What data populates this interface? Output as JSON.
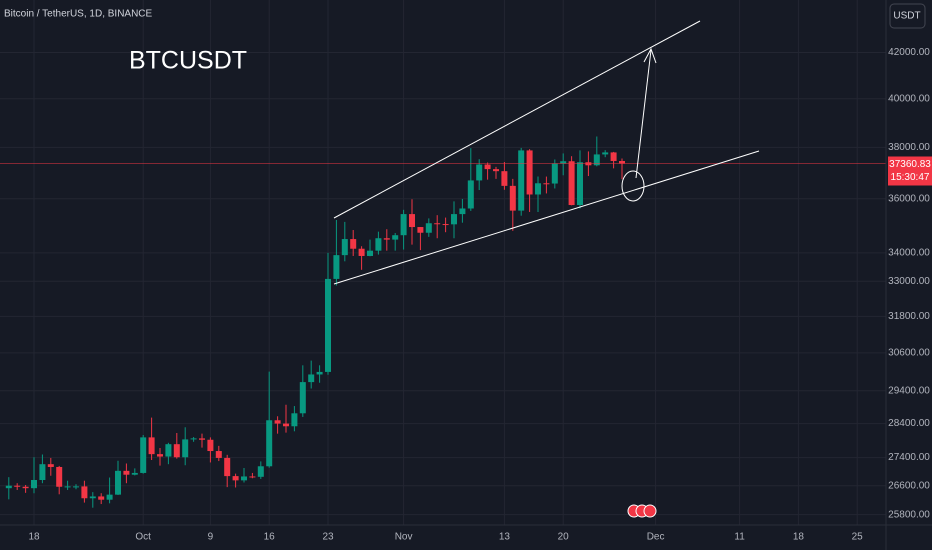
{
  "chart_data": {
    "type": "candlestick",
    "symbol_line": "Bitcoin / TetherUS, 1D, BINANCE",
    "title": "BTCUSDT",
    "currency_button": "USDT",
    "last_price": 37360.83,
    "countdown": "15:30:47",
    "log_scale": true,
    "grid": true,
    "up_color": "#089981",
    "down_color": "#f23645",
    "categories": [
      null,
      null,
      null,
      "18",
      null,
      null,
      null,
      null,
      null,
      null,
      null,
      null,
      null,
      null,
      null,
      null,
      "Oct",
      null,
      null,
      null,
      null,
      null,
      null,
      null,
      "9",
      null,
      null,
      null,
      null,
      null,
      null,
      "16",
      null,
      null,
      null,
      null,
      null,
      null,
      "23",
      null,
      null,
      null,
      null,
      null,
      null,
      null,
      null,
      "Nov",
      null,
      null,
      null,
      null,
      null,
      null,
      null,
      null,
      null,
      null,
      null,
      "13",
      null,
      null,
      null,
      null,
      null,
      null,
      "20",
      null,
      null,
      null,
      null,
      null,
      null,
      null,
      null,
      null,
      null,
      "Dec",
      null,
      null,
      null,
      null,
      null,
      null,
      null,
      null,
      null,
      "11",
      null,
      null,
      null,
      null,
      null,
      null,
      "18",
      null,
      null,
      null,
      null,
      null,
      null,
      "25",
      null,
      null
    ],
    "open": [
      26530,
      26600,
      26570,
      26530,
      26760,
      27210,
      27130,
      26570,
      26580,
      26580,
      26250,
      26300,
      26210,
      26350,
      27020,
      26910,
      26960,
      27990,
      27500,
      27430,
      27790,
      27410,
      27930,
      27960,
      27920,
      27590,
      27390,
      26870,
      26750,
      26860,
      26850,
      27150,
      28500,
      28400,
      28320,
      28710,
      29670,
      29910,
      29990,
      33080,
      33920,
      34500,
      34150,
      33890,
      34080,
      34530,
      34480,
      34640,
      35420,
      34940,
      34730,
      35080,
      35050,
      35040,
      35420,
      35630,
      36700,
      37320,
      37140,
      37060,
      36490,
      35550,
      37880,
      36160,
      36590,
      36580,
      37360,
      37450,
      35760,
      37410,
      37290,
      37720,
      37800,
      37460,
      null,
      null,
      null,
      null,
      null,
      null,
      null,
      null,
      null,
      null,
      null,
      null,
      null,
      null,
      null,
      null,
      null,
      null,
      null,
      null,
      null,
      null,
      null,
      null,
      null,
      null,
      null,
      null,
      null,
      null
    ],
    "high": [
      26840,
      26670,
      26620,
      27410,
      27490,
      27390,
      27160,
      26740,
      26640,
      26740,
      26420,
      26390,
      26830,
      27310,
      27230,
      27090,
      28060,
      28580,
      27680,
      27830,
      28120,
      28290,
      28000,
      28100,
      27990,
      27740,
      27480,
      26940,
      27100,
      26960,
      27290,
      30000,
      28620,
      28970,
      28930,
      30200,
      30350,
      30200,
      34000,
      35200,
      35130,
      34830,
      34240,
      34480,
      34770,
      34860,
      34720,
      35580,
      35980,
      34940,
      35260,
      35380,
      35290,
      35900,
      35990,
      37970,
      37530,
      37400,
      37230,
      37420,
      36760,
      37980,
      37930,
      36850,
      36850,
      37520,
      37760,
      37650,
      37880,
      37840,
      38440,
      37890,
      37820,
      37560,
      null,
      null,
      null,
      null,
      null,
      null,
      null,
      null,
      null,
      null,
      null,
      null,
      null,
      null,
      null,
      null,
      null,
      null,
      null,
      null,
      null,
      null,
      null,
      null,
      null,
      null,
      null,
      null,
      null,
      null
    ],
    "low": [
      26220,
      26480,
      26400,
      26390,
      26670,
      26880,
      26360,
      26480,
      26500,
      26130,
      25990,
      26090,
      26110,
      26340,
      26670,
      26890,
      26940,
      27330,
      27170,
      27210,
      27370,
      27180,
      27860,
      27690,
      27260,
      27300,
      26560,
      26550,
      26690,
      26810,
      26790,
      27110,
      28100,
      28130,
      28170,
      28600,
      29470,
      29650,
      29900,
      32850,
      33700,
      33890,
      33400,
      33880,
      33940,
      34080,
      34080,
      34120,
      34300,
      34100,
      34580,
      34530,
      34750,
      34530,
      35100,
      35540,
      36330,
      36730,
      36760,
      36340,
      34800,
      35360,
      35500,
      35500,
      36200,
      36390,
      36900,
      35750,
      35630,
      36870,
      37250,
      37610,
      37170,
      36750,
      null,
      null,
      null,
      null,
      null,
      null,
      null,
      null,
      null,
      null,
      null,
      null,
      null,
      null,
      null,
      null,
      null,
      null,
      null,
      null,
      null,
      null,
      null,
      null,
      null,
      null,
      null,
      null,
      null,
      null
    ],
    "close": [
      26600,
      26570,
      26530,
      26760,
      27210,
      27130,
      26570,
      26580,
      26580,
      26250,
      26300,
      26210,
      26350,
      27020,
      26910,
      26960,
      27990,
      27500,
      27430,
      27790,
      27410,
      27930,
      27960,
      27920,
      27590,
      27390,
      26870,
      26750,
      26860,
      26850,
      27150,
      28500,
      28400,
      28320,
      28710,
      29670,
      29910,
      29990,
      33080,
      33920,
      34500,
      34150,
      33890,
      34080,
      34530,
      34480,
      34640,
      35420,
      34940,
      34730,
      35080,
      35050,
      35040,
      35420,
      35630,
      36700,
      37320,
      37140,
      37060,
      36490,
      35550,
      37880,
      36160,
      36590,
      36580,
      37360,
      37450,
      35760,
      37410,
      37290,
      37720,
      37800,
      37460,
      37360,
      null,
      null,
      null,
      null,
      null,
      null,
      null,
      null,
      null,
      null,
      null,
      null,
      null,
      null,
      null,
      null,
      null,
      null,
      null,
      null,
      null,
      null,
      null,
      null,
      null,
      null,
      null,
      null,
      null,
      null
    ],
    "ylim": [
      25520,
      44390
    ],
    "yticks": [
      {
        "value": 25800,
        "label": "25800.00"
      },
      {
        "value": 26600,
        "label": "26600.00"
      },
      {
        "value": 27400,
        "label": "27400.00"
      },
      {
        "value": 28400,
        "label": "28400.00"
      },
      {
        "value": 29400,
        "label": "29400.00"
      },
      {
        "value": 30600,
        "label": "30600.00"
      },
      {
        "value": 31800,
        "label": "31800.00"
      },
      {
        "value": 33000,
        "label": "33000.00"
      },
      {
        "value": 34000,
        "label": "34000.00"
      },
      {
        "value": 36000,
        "label": "36000.00"
      },
      {
        "value": 38000,
        "label": "38000.00"
      },
      {
        "value": 40000,
        "label": "40000.00"
      },
      {
        "value": 42000,
        "label": "42000.00"
      }
    ]
  }
}
